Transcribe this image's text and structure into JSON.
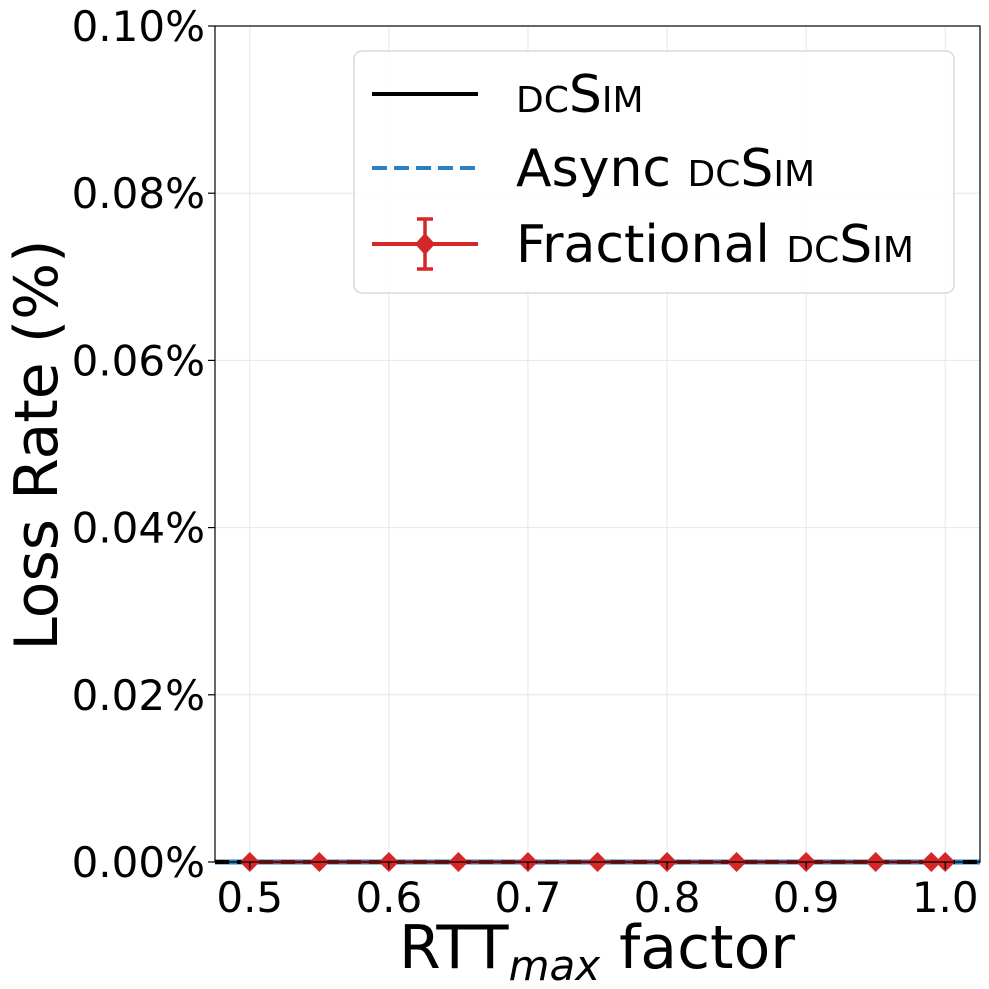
{
  "chart_data": {
    "type": "line",
    "xlabel_main": "RTT",
    "xlabel_sub": "max",
    "xlabel_rest": " factor",
    "ylabel": "Loss Rate (%)",
    "xlim": [
      0.475,
      1.025
    ],
    "ylim": [
      -1.2e-06,
      0.1
    ],
    "x_ticks": [
      0.5,
      0.6,
      0.7,
      0.8,
      0.9,
      1.0
    ],
    "x_tick_labels": [
      "0.5",
      "0.6",
      "0.7",
      "0.8",
      "0.9",
      "1.0"
    ],
    "y_ticks": [
      0.0,
      0.02,
      0.04,
      0.06,
      0.08,
      0.1
    ],
    "y_tick_labels": [
      "0.00%",
      "0.02%",
      "0.04%",
      "0.06%",
      "0.08%",
      "0.10%"
    ],
    "grid": true,
    "legend_position": "top-right",
    "series": [
      {
        "name_prefix": "",
        "name_sc": "dcSim",
        "style": "solid",
        "color": "#000000",
        "x": [
          0.475,
          1.025
        ],
        "y": [
          0.0,
          0.0
        ]
      },
      {
        "name_prefix": "Async ",
        "name_sc": "dcSim",
        "style": "dashed",
        "color": "#2a7fc1",
        "x": [
          0.475,
          1.025
        ],
        "y": [
          0.0,
          0.0
        ]
      },
      {
        "name_prefix": "Fractional ",
        "name_sc": "dcSim",
        "style": "diamond-errorbar",
        "color": "#d62728",
        "x": [
          0.5,
          0.55,
          0.6,
          0.65,
          0.7,
          0.75,
          0.8,
          0.85,
          0.9,
          0.95,
          0.99,
          1.0
        ],
        "y": [
          0,
          0,
          0,
          0,
          0,
          0,
          0,
          0,
          0,
          0,
          0,
          0
        ]
      }
    ]
  }
}
